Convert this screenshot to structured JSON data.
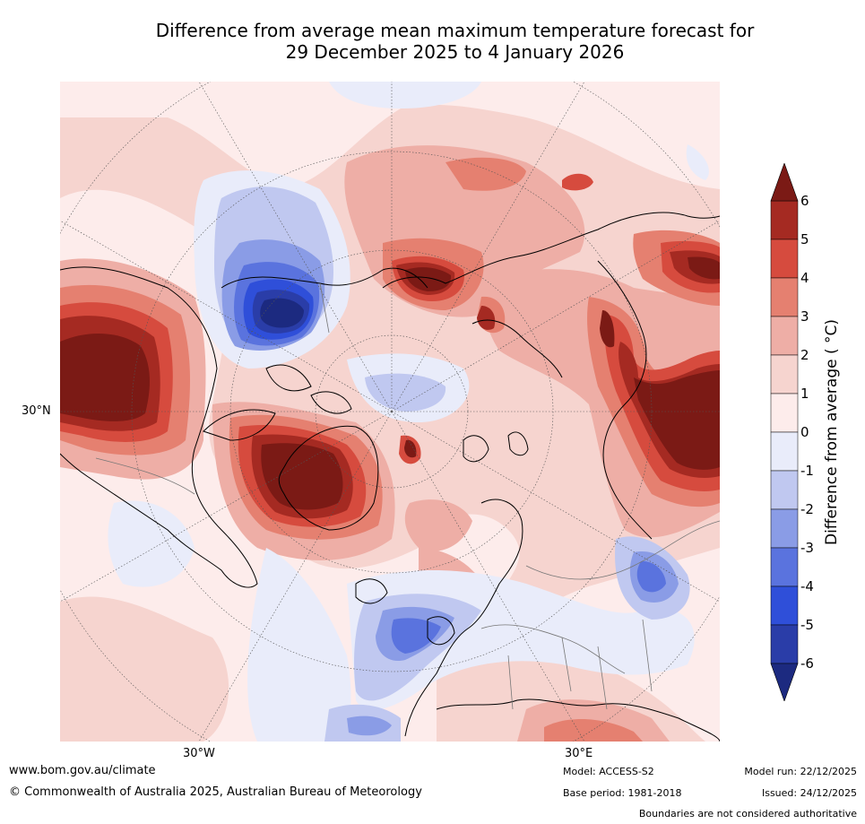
{
  "title": {
    "line1": "Difference from average mean maximum temperature forecast for",
    "line2": "29 December 2025 to 4 January 2026"
  },
  "map": {
    "projection": "north polar stereographic",
    "lat_label": "30°N",
    "lon_label_left": "30°W",
    "lon_label_right": "30°E"
  },
  "colorbar": {
    "label": "Difference from average ( °C)",
    "ticks": [
      "6",
      "5",
      "4",
      "3",
      "2",
      "1",
      "0",
      "-1",
      "-2",
      "-3",
      "-4",
      "-5",
      "-6"
    ],
    "bins": [
      {
        "range": "5 to 6",
        "color": "#a52a22"
      },
      {
        "range": "4 to 5",
        "color": "#d64b3e"
      },
      {
        "range": "3 to 4",
        "color": "#e58070"
      },
      {
        "range": "2 to 3",
        "color": "#eeaea6"
      },
      {
        "range": "1 to 2",
        "color": "#f6d4cf"
      },
      {
        "range": "0 to 1",
        "color": "#fdeceb"
      },
      {
        "range": "-1 to 0",
        "color": "#e9ecfa"
      },
      {
        "range": "-2 to -1",
        "color": "#c0c8f0"
      },
      {
        "range": "-3 to -2",
        "color": "#8a9ce6"
      },
      {
        "range": "-4 to -3",
        "color": "#5a73de"
      },
      {
        "range": "-5 to -4",
        "color": "#2f4fd9"
      },
      {
        "range": "-6 to -5",
        "color": "#2a3da8"
      }
    ],
    "over_color": "#7b1a15",
    "under_color": "#1c2a80"
  },
  "footer": {
    "website": "www.bom.gov.au/climate",
    "copyright": "© Commonwealth of Australia 2025, Australian Bureau of Meteorology",
    "model": "Model: ACCESS-S2",
    "base_period": "Base period: 1981-2018",
    "model_run": "Model run: 22/12/2025",
    "issued": "Issued: 24/12/2025",
    "disclaimer": "Boundaries are not considered authoritative"
  }
}
